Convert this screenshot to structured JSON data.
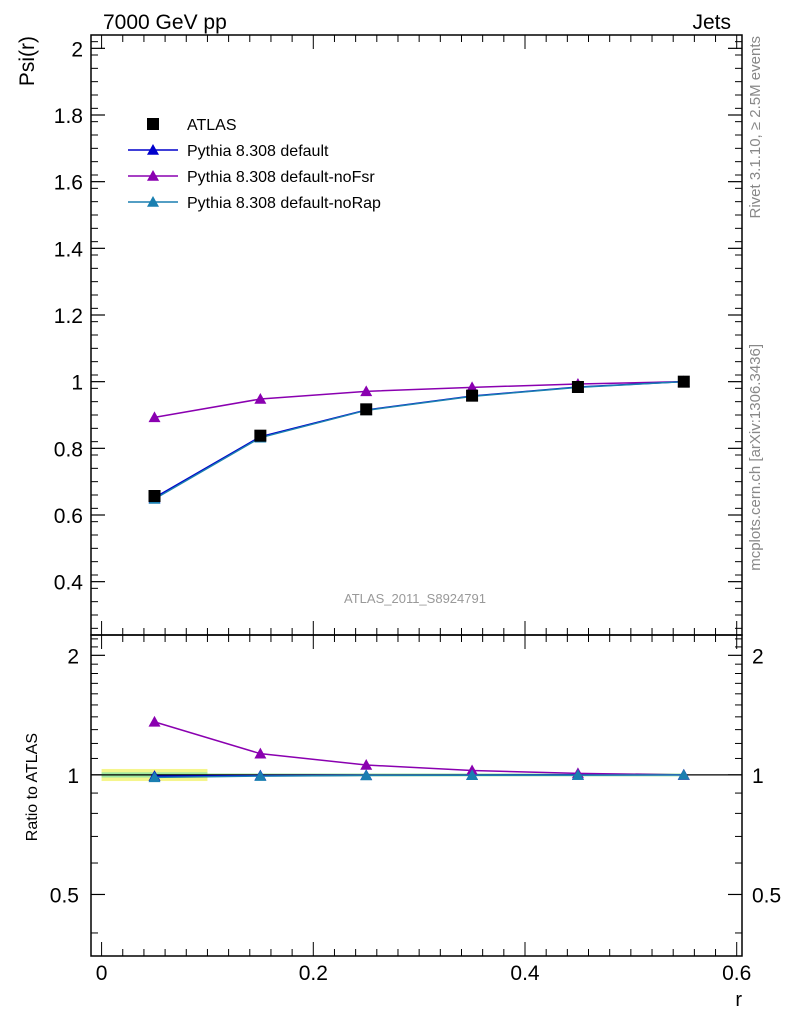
{
  "header": {
    "left": "7000 GeV pp",
    "right": "Jets"
  },
  "side_text": {
    "top": "Rivet 3.1.10, ≥ 2.5M events",
    "bottom": "mcplots.cern.ch [arXiv:1306.3436]"
  },
  "watermark": "ATLAS_2011_S8924791",
  "colors": {
    "atlas": "#000000",
    "default": "#0000cc",
    "noFsr": "#8a00b0",
    "noRap": "#1a7fb0",
    "band_yellow": "#f5f58c",
    "band_green": "#a0e8a0"
  },
  "chart_data": [
    {
      "type": "line",
      "panel": "main",
      "ylabel": "Psi(r)",
      "xlabel": "",
      "ylim": [
        0.24,
        2.04
      ],
      "xlim": [
        -0.01,
        0.605
      ],
      "yticks": [
        0.4,
        0.6,
        0.8,
        1,
        1.2,
        1.4,
        1.6,
        1.8,
        2
      ],
      "ytick_labels": [
        "0.4",
        "0.6",
        "0.8",
        "1",
        "1.2",
        "1.4",
        "1.6",
        "1.8",
        "2"
      ],
      "legend_placement": "top-left",
      "x": [
        0.05,
        0.15,
        0.25,
        0.35,
        0.45,
        0.55
      ],
      "series": [
        {
          "name": "ATLAS",
          "marker": "square",
          "values": [
            0.657,
            0.838,
            0.917,
            0.958,
            0.984,
            1.0
          ]
        },
        {
          "name": "Pythia 8.308 default",
          "marker": "triangle",
          "values": [
            0.652,
            0.835,
            0.915,
            0.957,
            0.984,
            1.0
          ]
        },
        {
          "name": "Pythia 8.308 default-noFsr",
          "marker": "triangle",
          "values": [
            0.893,
            0.948,
            0.971,
            0.983,
            0.993,
            1.0
          ]
        },
        {
          "name": "Pythia 8.308 default-noRap",
          "marker": "triangle",
          "values": [
            0.648,
            0.832,
            0.914,
            0.956,
            0.983,
            1.0
          ]
        }
      ]
    },
    {
      "type": "line",
      "panel": "ratio",
      "ylabel": "Ratio to ATLAS",
      "xlabel": "r",
      "ylim": [
        0.35,
        2.25
      ],
      "xlim": [
        -0.01,
        0.605
      ],
      "yticks": [
        0.5,
        1,
        2
      ],
      "ytick_labels": [
        "0.5",
        "1",
        "2"
      ],
      "xticks": [
        0,
        0.2,
        0.4,
        0.6
      ],
      "xtick_labels": [
        "0",
        "0.2",
        "0.4",
        "0.6"
      ],
      "x": [
        0.05,
        0.15,
        0.25,
        0.35,
        0.45,
        0.55
      ],
      "band": {
        "x_range": [
          0.0,
          0.1
        ],
        "yellow": [
          0.965,
          1.035
        ],
        "green": [
          0.985,
          1.015
        ]
      },
      "series": [
        {
          "name": "Pythia 8.308 default",
          "values": [
            0.993,
            0.996,
            0.998,
            0.999,
            1.0,
            1.0
          ]
        },
        {
          "name": "Pythia 8.308 default-noFsr",
          "values": [
            1.36,
            1.131,
            1.059,
            1.026,
            1.009,
            1.0
          ]
        },
        {
          "name": "Pythia 8.308 default-noRap",
          "values": [
            0.986,
            0.993,
            0.997,
            0.998,
            0.999,
            1.0
          ]
        }
      ]
    }
  ]
}
